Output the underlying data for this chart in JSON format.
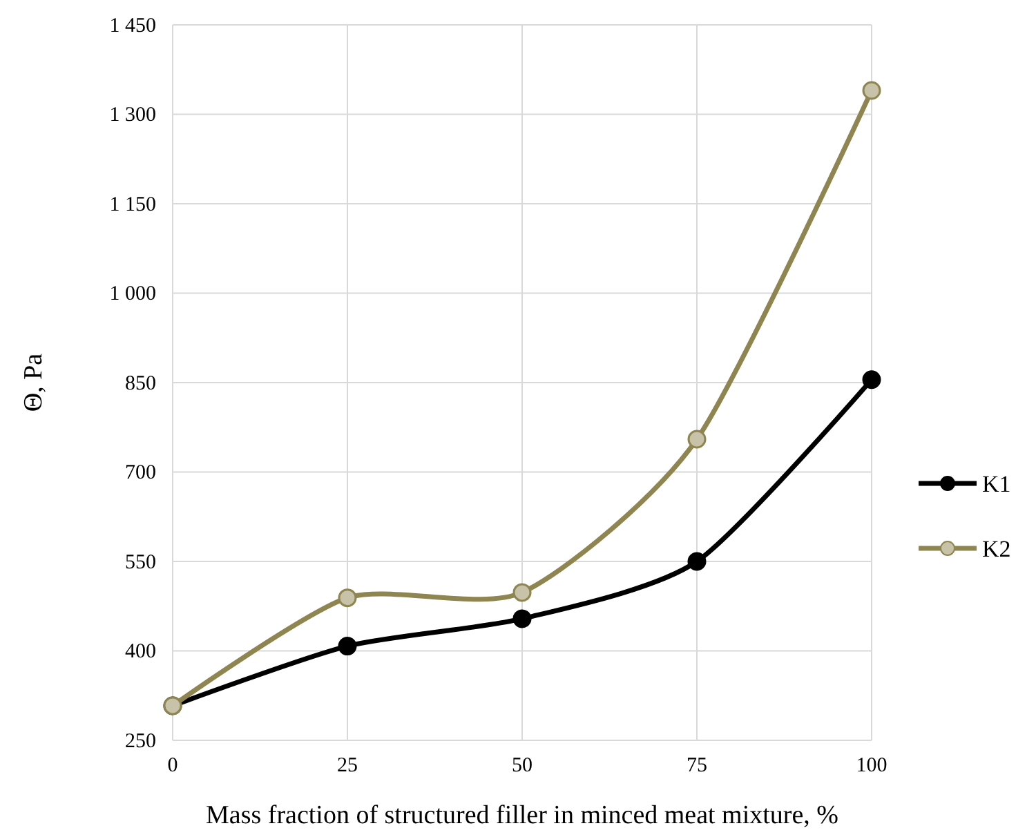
{
  "chart_data": {
    "type": "line",
    "xlabel": "Mass fraction of structured filler in minced meat mixture, %",
    "ylabel": "Θ, Pa",
    "x": [
      0,
      25,
      50,
      75,
      100
    ],
    "series": [
      {
        "name": "K1",
        "color": "#000000",
        "values": [
          308,
          408,
          454,
          550,
          855
        ]
      },
      {
        "name": "K2",
        "color": "#8e8550",
        "values": [
          308,
          489,
          498,
          755,
          1340
        ]
      }
    ],
    "xlim": [
      0,
      100
    ],
    "xticks": [
      0,
      25,
      50,
      75,
      100
    ],
    "ylim": [
      250,
      1450
    ],
    "yticks": [
      250,
      400,
      550,
      700,
      850,
      {
        "value": 1000,
        "label": "1 000"
      },
      {
        "value": 1150,
        "label": "1 150"
      },
      {
        "value": 1300,
        "label": "1 300"
      },
      {
        "value": 1450,
        "label": "1 450"
      }
    ],
    "grid": true,
    "legend": "right",
    "marker": "circle",
    "line_style": "solid"
  }
}
